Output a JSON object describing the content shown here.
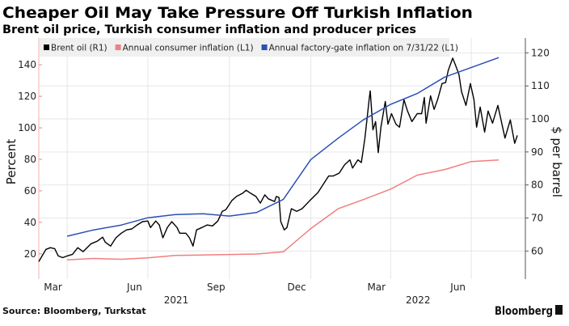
{
  "chart_data": {
    "type": "line",
    "title": "Cheaper Oil May Take Pressure Off Turkish Inflation",
    "subtitle": "Brent oil price, Turkish consumer inflation and producer prices",
    "source": "Source: Bloomberg, Turkstat",
    "logo": "Bloomberg",
    "ylabel_left": "Percent",
    "ylabel_right": "$ per barrel",
    "xlim": [
      "2021-02-27",
      "2022-08-30"
    ],
    "ylim_left": [
      4,
      157
    ],
    "ylim_right": [
      51.5,
      124.5
    ],
    "left_ticks": [
      20,
      40,
      60,
      80,
      100,
      120,
      140
    ],
    "right_ticks": [
      60,
      70,
      80,
      90,
      100,
      110,
      120
    ],
    "x_tick_labels": [
      {
        "label": "Mar",
        "date": "2021-03-15"
      },
      {
        "label": "Jun",
        "date": "2021-06-15"
      },
      {
        "label": "Sep",
        "date": "2021-09-15"
      },
      {
        "label": "Dec",
        "date": "2021-12-15"
      },
      {
        "label": "Mar",
        "date": "2022-03-15"
      },
      {
        "label": "Jun",
        "date": "2022-06-15"
      }
    ],
    "x_year_labels": [
      {
        "label": "2021",
        "date": "2021-08-01"
      },
      {
        "label": "2022",
        "date": "2022-05-01"
      }
    ],
    "x_gridlines": [
      "2021-03-31",
      "2021-06-30",
      "2021-09-30",
      "2021-12-31",
      "2022-03-31",
      "2022-06-30"
    ],
    "grid": true,
    "legend_position": "top",
    "series": [
      {
        "name": "Brent oil (R1)",
        "axis": "right",
        "color": "#000000",
        "points": [
          [
            "2021-02-27",
            56.8
          ],
          [
            "2021-03-07",
            60.5
          ],
          [
            "2021-03-12",
            61
          ],
          [
            "2021-03-17",
            60.7
          ],
          [
            "2021-03-21",
            58.5
          ],
          [
            "2021-03-26",
            58
          ],
          [
            "2021-03-31",
            58.5
          ],
          [
            "2021-04-06",
            59
          ],
          [
            "2021-04-12",
            61
          ],
          [
            "2021-04-18",
            59.8
          ],
          [
            "2021-04-27",
            62.2
          ],
          [
            "2021-05-04",
            63
          ],
          [
            "2021-05-10",
            64.2
          ],
          [
            "2021-05-13",
            62.7
          ],
          [
            "2021-05-19",
            61.5
          ],
          [
            "2021-05-25",
            64
          ],
          [
            "2021-05-31",
            65.4
          ],
          [
            "2021-06-06",
            66.4
          ],
          [
            "2021-06-12",
            66.7
          ],
          [
            "2021-06-18",
            67.9
          ],
          [
            "2021-06-24",
            68.9
          ],
          [
            "2021-06-30",
            69.1
          ],
          [
            "2021-07-03",
            67.1
          ],
          [
            "2021-07-09",
            69.1
          ],
          [
            "2021-07-13",
            67.9
          ],
          [
            "2021-07-17",
            64
          ],
          [
            "2021-07-22",
            67.1
          ],
          [
            "2021-07-27",
            68.9
          ],
          [
            "2021-08-02",
            67.1
          ],
          [
            "2021-08-05",
            65.4
          ],
          [
            "2021-08-12",
            65.4
          ],
          [
            "2021-08-16",
            64
          ],
          [
            "2021-08-20",
            61.5
          ],
          [
            "2021-08-24",
            66.4
          ],
          [
            "2021-08-30",
            67.1
          ],
          [
            "2021-09-05",
            67.9
          ],
          [
            "2021-09-11",
            67.6
          ],
          [
            "2021-09-17",
            69.1
          ],
          [
            "2021-09-22",
            72
          ],
          [
            "2021-09-26",
            72.5
          ],
          [
            "2021-10-03",
            75.3
          ],
          [
            "2021-10-08",
            76.5
          ],
          [
            "2021-10-15",
            77.5
          ],
          [
            "2021-10-19",
            78.4
          ],
          [
            "2021-10-24",
            77.5
          ],
          [
            "2021-10-30",
            76.5
          ],
          [
            "2021-11-04",
            74.5
          ],
          [
            "2021-11-09",
            77
          ],
          [
            "2021-11-13",
            75.8
          ],
          [
            "2021-11-20",
            75
          ],
          [
            "2021-11-22",
            76.5
          ],
          [
            "2021-11-25",
            76.2
          ],
          [
            "2021-11-27",
            68.9
          ],
          [
            "2021-12-01",
            66.4
          ],
          [
            "2021-12-04",
            67.1
          ],
          [
            "2021-12-09",
            72.8
          ],
          [
            "2021-12-15",
            72
          ],
          [
            "2021-12-21",
            72.8
          ],
          [
            "2021-12-30",
            75.3
          ],
          [
            "2022-01-08",
            77.7
          ],
          [
            "2022-01-14",
            80.2
          ],
          [
            "2022-01-20",
            82.7
          ],
          [
            "2022-01-25",
            82.7
          ],
          [
            "2022-02-01",
            83.6
          ],
          [
            "2022-02-07",
            86.1
          ],
          [
            "2022-02-13",
            87.6
          ],
          [
            "2022-02-16",
            85.1
          ],
          [
            "2022-02-22",
            87.6
          ],
          [
            "2022-02-26",
            86.8
          ],
          [
            "2022-03-02",
            94.2
          ],
          [
            "2022-03-07",
            106.5
          ],
          [
            "2022-03-08",
            108.5
          ],
          [
            "2022-03-11",
            96.7
          ],
          [
            "2022-03-14",
            99.2
          ],
          [
            "2022-03-17",
            89.8
          ],
          [
            "2022-03-20",
            97.5
          ],
          [
            "2022-03-25",
            105.3
          ],
          [
            "2022-03-28",
            98.4
          ],
          [
            "2022-04-01",
            101.6
          ],
          [
            "2022-04-06",
            98.4
          ],
          [
            "2022-04-10",
            97.5
          ],
          [
            "2022-04-15",
            105.8
          ],
          [
            "2022-04-19",
            102.4
          ],
          [
            "2022-04-24",
            99.2
          ],
          [
            "2022-04-30",
            101.6
          ],
          [
            "2022-05-05",
            101.6
          ],
          [
            "2022-05-08",
            106.5
          ],
          [
            "2022-05-10",
            98.7
          ],
          [
            "2022-05-15",
            107
          ],
          [
            "2022-05-19",
            102.9
          ],
          [
            "2022-05-23",
            105.8
          ],
          [
            "2022-05-28",
            110.7
          ],
          [
            "2022-06-01",
            111
          ],
          [
            "2022-06-04",
            114.7
          ],
          [
            "2022-06-09",
            118.4
          ],
          [
            "2022-06-12",
            116.4
          ],
          [
            "2022-06-16",
            113.5
          ],
          [
            "2022-06-19",
            108.3
          ],
          [
            "2022-06-24",
            104.1
          ],
          [
            "2022-06-29",
            110.7
          ],
          [
            "2022-07-03",
            105.8
          ],
          [
            "2022-07-06",
            97.5
          ],
          [
            "2022-07-10",
            103.6
          ],
          [
            "2022-07-15",
            96
          ],
          [
            "2022-07-19",
            102.4
          ],
          [
            "2022-07-24",
            98.7
          ],
          [
            "2022-07-30",
            104.1
          ],
          [
            "2022-08-07",
            94.2
          ],
          [
            "2022-08-13",
            99.7
          ],
          [
            "2022-08-18",
            92.6
          ],
          [
            "2022-08-21",
            95
          ]
        ]
      },
      {
        "name": "Annual consumer inflation (L1)",
        "axis": "left",
        "color": "#f07f7f",
        "points": [
          [
            "2021-03-31",
            16.2
          ],
          [
            "2021-04-30",
            17.1
          ],
          [
            "2021-05-31",
            16.6
          ],
          [
            "2021-06-30",
            17.5
          ],
          [
            "2021-07-31",
            19.0
          ],
          [
            "2021-08-31",
            19.3
          ],
          [
            "2021-09-30",
            19.6
          ],
          [
            "2021-10-31",
            19.9
          ],
          [
            "2021-11-30",
            21.3
          ],
          [
            "2021-12-31",
            36.1
          ],
          [
            "2022-01-31",
            48.7
          ],
          [
            "2022-02-28",
            54.4
          ],
          [
            "2022-03-31",
            61.1
          ],
          [
            "2022-04-30",
            70.0
          ],
          [
            "2022-05-31",
            73.5
          ],
          [
            "2022-06-30",
            78.6
          ],
          [
            "2022-07-31",
            79.6
          ]
        ]
      },
      {
        "name": "Annual factory-gate inflation on 7/31/22 (L1)",
        "axis": "left",
        "color": "#2b4fb5",
        "points": [
          [
            "2021-03-31",
            31.2
          ],
          [
            "2021-04-30",
            35.2
          ],
          [
            "2021-05-31",
            38.3
          ],
          [
            "2021-06-30",
            42.9
          ],
          [
            "2021-07-31",
            44.9
          ],
          [
            "2021-08-31",
            45.5
          ],
          [
            "2021-09-30",
            44.0
          ],
          [
            "2021-10-31",
            46.3
          ],
          [
            "2021-11-30",
            54.6
          ],
          [
            "2021-12-31",
            79.9
          ],
          [
            "2022-01-31",
            93.5
          ],
          [
            "2022-02-28",
            105.0
          ],
          [
            "2022-03-31",
            114.9
          ],
          [
            "2022-04-30",
            121.8
          ],
          [
            "2022-05-31",
            132.2
          ],
          [
            "2022-06-30",
            138.3
          ],
          [
            "2022-07-31",
            144.6
          ]
        ]
      }
    ]
  }
}
